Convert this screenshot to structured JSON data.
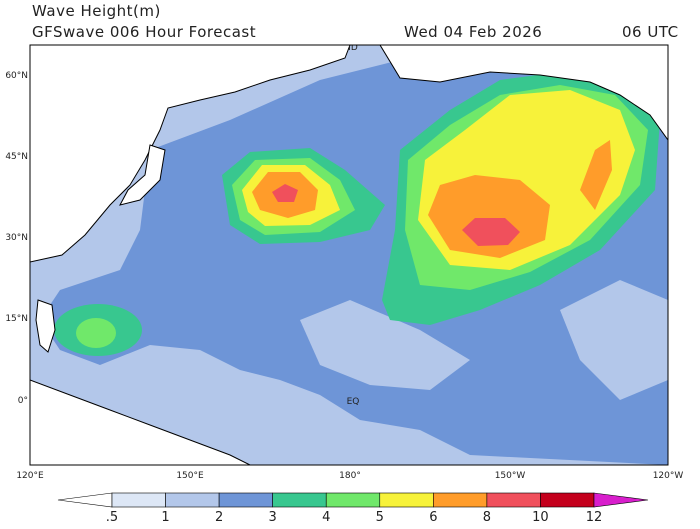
{
  "header": {
    "title": "Wave Height(m)",
    "model": "GFSwave 006 Hour Forecast",
    "date": "Wed 04 Feb 2026",
    "time": "06 UTC"
  },
  "map": {
    "lat_labels": [
      "60°N",
      "45°N",
      "30°N",
      "15°N",
      "0°"
    ],
    "lon_labels": [
      "120°E",
      "150°E",
      "180°",
      "150°W",
      "120°W"
    ],
    "annotations": [
      "EQ",
      "ID"
    ]
  },
  "colorbar": {
    "levels": [
      {
        "value": 0.5,
        "label": ".5"
      },
      1,
      2,
      3,
      4,
      5,
      6,
      8,
      10,
      12
    ],
    "colors": [
      "#ffffff",
      "#dde7f6",
      "#b3c7ea",
      "#6e95d7",
      "#38c78f",
      "#70e86a",
      "#f7f23a",
      "#ff9c2a",
      "#f0505c",
      "#c4001c",
      "#d81ecc"
    ]
  }
}
